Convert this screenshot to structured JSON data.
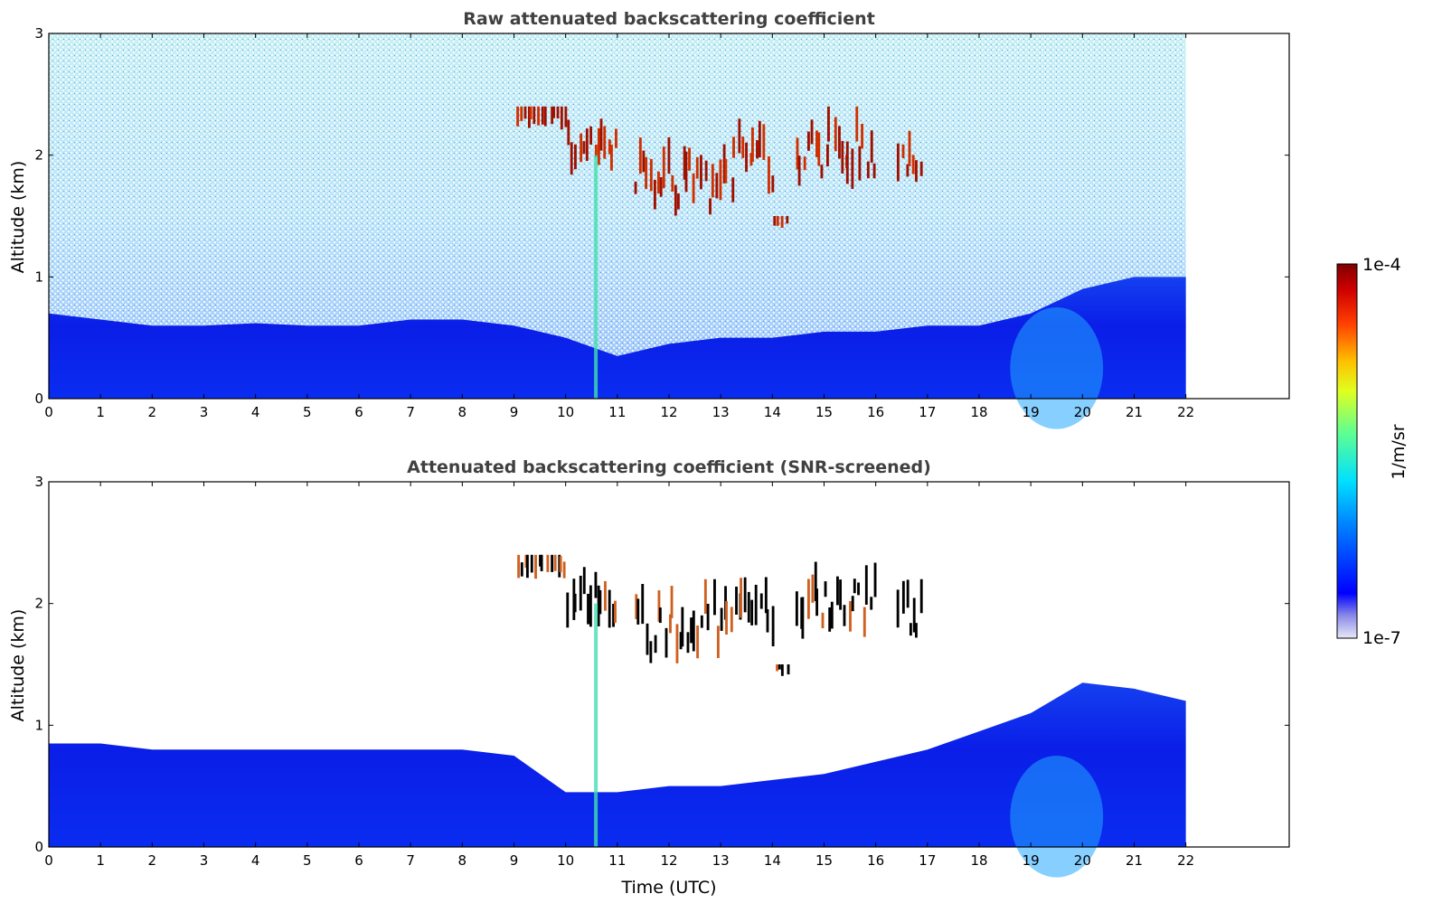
{
  "chart_data": [
    {
      "type": "heatmap",
      "title": "Raw attenuated backscattering coefficient",
      "xlabel": "",
      "ylabel": "Altitude (km)",
      "xlim": [
        0,
        24
      ],
      "ylim": [
        0,
        3
      ],
      "x_ticks": [
        "0",
        "1",
        "2",
        "3",
        "4",
        "5",
        "6",
        "7",
        "8",
        "9",
        "10",
        "11",
        "12",
        "13",
        "14",
        "15",
        "16",
        "17",
        "18",
        "19",
        "20",
        "21",
        "22"
      ],
      "y_ticks": [
        "0",
        "1",
        "2",
        "3"
      ],
      "data_time_range": [
        0,
        22
      ],
      "boundary_layer_top_km": [
        0.7,
        0.65,
        0.6,
        0.6,
        0.62,
        0.6,
        0.6,
        0.65,
        0.65,
        0.6,
        0.5,
        0.35,
        0.45,
        0.5,
        0.5,
        0.55,
        0.55,
        0.6,
        0.6,
        0.7,
        0.9,
        1.0,
        1.0
      ],
      "noise_top_km": 3,
      "cloud_layers": [
        {
          "time": [
            9.0,
            10.0
          ],
          "altitude_km": [
            2.2,
            2.4
          ]
        },
        {
          "time": [
            10.0,
            11.0
          ],
          "altitude_km": [
            1.8,
            2.3
          ]
        },
        {
          "time": [
            11.3,
            13.0
          ],
          "altitude_km": [
            1.5,
            2.2
          ]
        },
        {
          "time": [
            13.0,
            14.0
          ],
          "altitude_km": [
            1.6,
            2.3
          ]
        },
        {
          "time": [
            14.0,
            14.3
          ],
          "altitude_km": [
            1.4,
            1.5
          ]
        },
        {
          "time": [
            14.4,
            16.0
          ],
          "altitude_km": [
            1.7,
            2.4
          ]
        },
        {
          "time": [
            16.4,
            16.9
          ],
          "altitude_km": [
            1.7,
            2.2
          ]
        }
      ]
    },
    {
      "type": "heatmap",
      "title": "Attenuated backscattering coefficient (SNR-screened)",
      "xlabel": "Time (UTC)",
      "ylabel": "Altitude (km)",
      "xlim": [
        0,
        24
      ],
      "ylim": [
        0,
        3
      ],
      "x_ticks": [
        "0",
        "1",
        "2",
        "3",
        "4",
        "5",
        "6",
        "7",
        "8",
        "9",
        "10",
        "11",
        "12",
        "13",
        "14",
        "15",
        "16",
        "17",
        "18",
        "19",
        "20",
        "21",
        "22"
      ],
      "y_ticks": [
        "0",
        "1",
        "2",
        "3"
      ],
      "data_time_range": [
        0,
        22
      ],
      "boundary_layer_top_km": [
        0.85,
        0.85,
        0.8,
        0.8,
        0.8,
        0.8,
        0.8,
        0.8,
        0.8,
        0.75,
        0.45,
        0.45,
        0.5,
        0.5,
        0.55,
        0.6,
        0.7,
        0.8,
        0.95,
        1.1,
        1.35,
        1.3,
        1.2
      ],
      "screened_cloud_layers": [
        {
          "time": [
            9.0,
            10.0
          ],
          "altitude_km": [
            2.2,
            2.4
          ]
        },
        {
          "time": [
            10.0,
            11.0
          ],
          "altitude_km": [
            1.8,
            2.3
          ]
        },
        {
          "time": [
            11.3,
            13.0
          ],
          "altitude_km": [
            1.5,
            2.2
          ]
        },
        {
          "time": [
            13.0,
            14.0
          ],
          "altitude_km": [
            1.6,
            2.3
          ]
        },
        {
          "time": [
            14.0,
            14.3
          ],
          "altitude_km": [
            1.4,
            1.5
          ]
        },
        {
          "time": [
            14.4,
            16.0
          ],
          "altitude_km": [
            1.7,
            2.4
          ]
        },
        {
          "time": [
            16.4,
            16.9
          ],
          "altitude_km": [
            1.7,
            2.2
          ]
        }
      ]
    }
  ],
  "colorbar": {
    "label": "1/m/sr",
    "max_label": "1e-4",
    "min_label": "1e-7",
    "scale": "log",
    "colormap": "jet",
    "colors": [
      "#e8e8f8",
      "#0000ff",
      "#0080ff",
      "#00ffff",
      "#80ff80",
      "#ffff00",
      "#ff8000",
      "#ff0000",
      "#800000"
    ]
  }
}
